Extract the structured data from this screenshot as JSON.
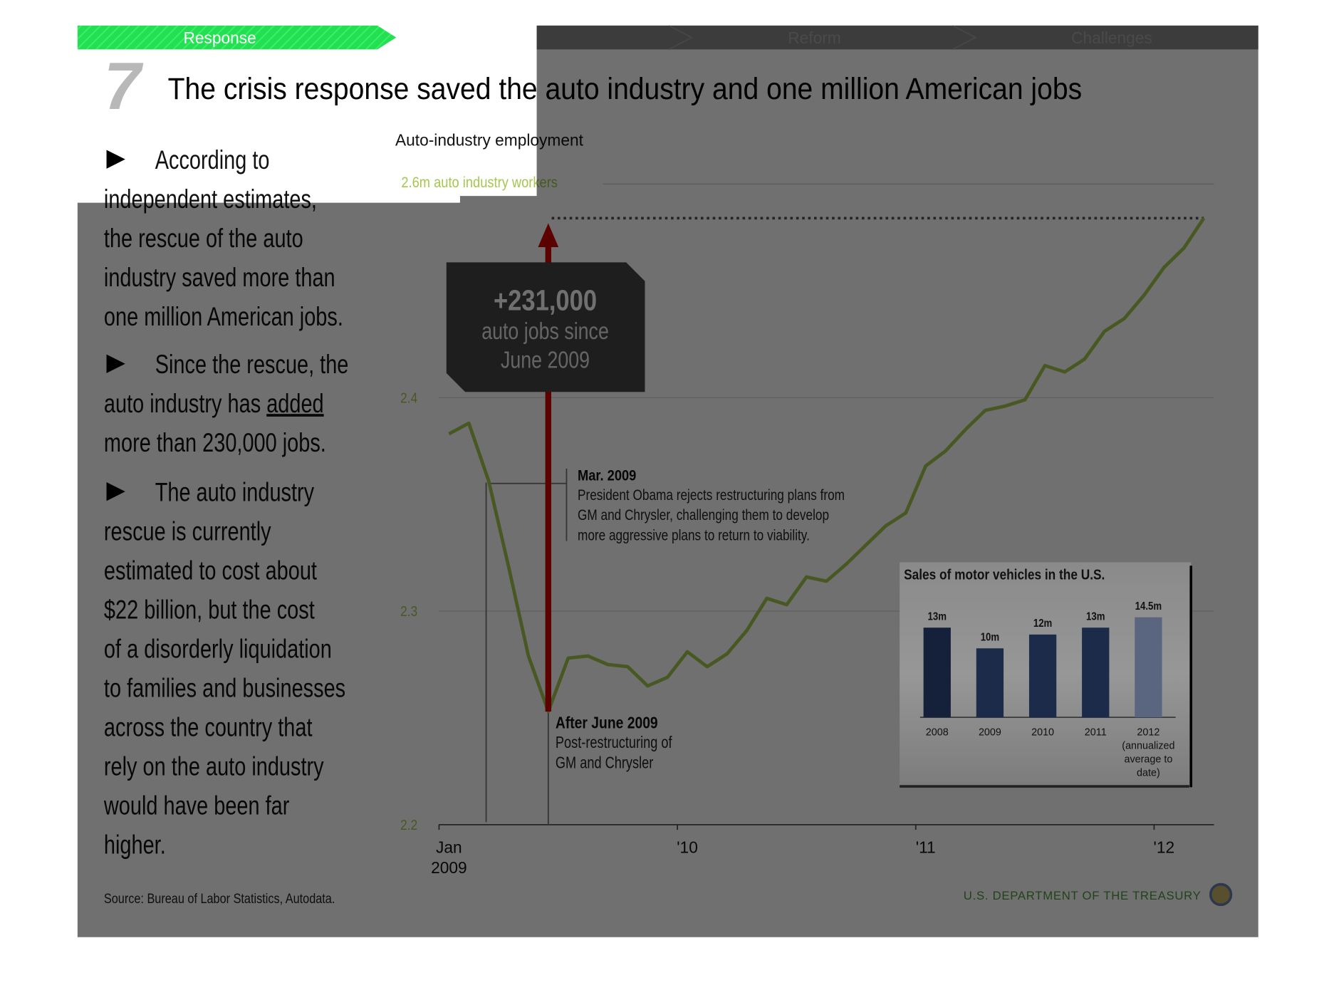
{
  "nav": {
    "active": "Response",
    "tabs": [
      "Reform",
      "Challenges"
    ]
  },
  "slide": {
    "number": "7",
    "title": "The crisis response saved the auto industry and one million American jobs"
  },
  "bullets": [
    [
      "According to",
      "independent estimates,",
      "the rescue of the auto",
      "industry saved more than",
      "one million American jobs."
    ],
    [
      "Since the rescue, the",
      [
        "auto industry has ",
        "added"
      ],
      "more than 230,000 jobs."
    ],
    [
      "The auto industry",
      "rescue is currently",
      "estimated to cost about",
      "$22 billion, but the cost",
      "of a disorderly liquidation",
      "to families and businesses",
      "across the country that",
      "rely on the auto industry",
      "would have been far",
      "higher."
    ]
  ],
  "source": "Source: Bureau of Labor Statistics, Autodata.",
  "footer": "U.S. DEPARTMENT OF THE TREASURY",
  "chart_data": [
    {
      "type": "line",
      "title": "Auto-industry employment",
      "top_label": "2.6m auto industry workers",
      "categories": [
        "Jan 2009",
        null,
        null,
        null,
        null,
        null,
        null,
        null,
        null,
        null,
        null,
        null,
        "'10",
        null,
        null,
        null,
        null,
        null,
        null,
        null,
        null,
        null,
        null,
        null,
        "'11",
        null,
        null,
        null,
        null,
        null,
        null,
        null,
        null,
        null,
        null,
        null,
        "'12",
        null,
        null
      ],
      "values": [
        2.383,
        2.388,
        2.361,
        2.321,
        2.279,
        2.253,
        2.278,
        2.279,
        2.275,
        2.274,
        2.265,
        2.269,
        2.281,
        2.274,
        2.28,
        2.291,
        2.306,
        2.303,
        2.316,
        2.314,
        2.322,
        2.331,
        2.34,
        2.346,
        2.368,
        2.375,
        2.385,
        2.394,
        2.396,
        2.399,
        2.415,
        2.412,
        2.418,
        2.431,
        2.437,
        2.448,
        2.461,
        2.47,
        2.484
      ],
      "color": "#a4c84f",
      "ylim": [
        2.2,
        2.5
      ],
      "yticks": [
        2.2,
        2.3,
        2.4
      ],
      "grid": true,
      "annotations": [
        {
          "title": "+231,000",
          "lines": [
            "auto jobs since",
            "June 2009"
          ]
        },
        {
          "title": "Mar. 2009",
          "lines": [
            "President Obama rejects restructuring plans from",
            "GM and Chrysler, challenging them to develop",
            "more aggressive plans to return to viability."
          ]
        },
        {
          "title": "After June 2009",
          "lines": [
            "Post-restructuring of",
            "GM and Chrysler"
          ]
        }
      ]
    },
    {
      "type": "bar",
      "title": "Sales of motor vehicles in the U.S.",
      "categories": [
        "2008",
        "2009",
        "2010",
        "2011",
        "2012 (annualized average to date)"
      ],
      "values": [
        13,
        10,
        12,
        13,
        14.5
      ],
      "value_labels": [
        "13m",
        "10m",
        "12m",
        "13m",
        "14.5m"
      ],
      "colors": [
        "#15213b",
        "#1c2b4a",
        "#1c2b4a",
        "#1c2b4a",
        "#5a6680"
      ]
    }
  ]
}
